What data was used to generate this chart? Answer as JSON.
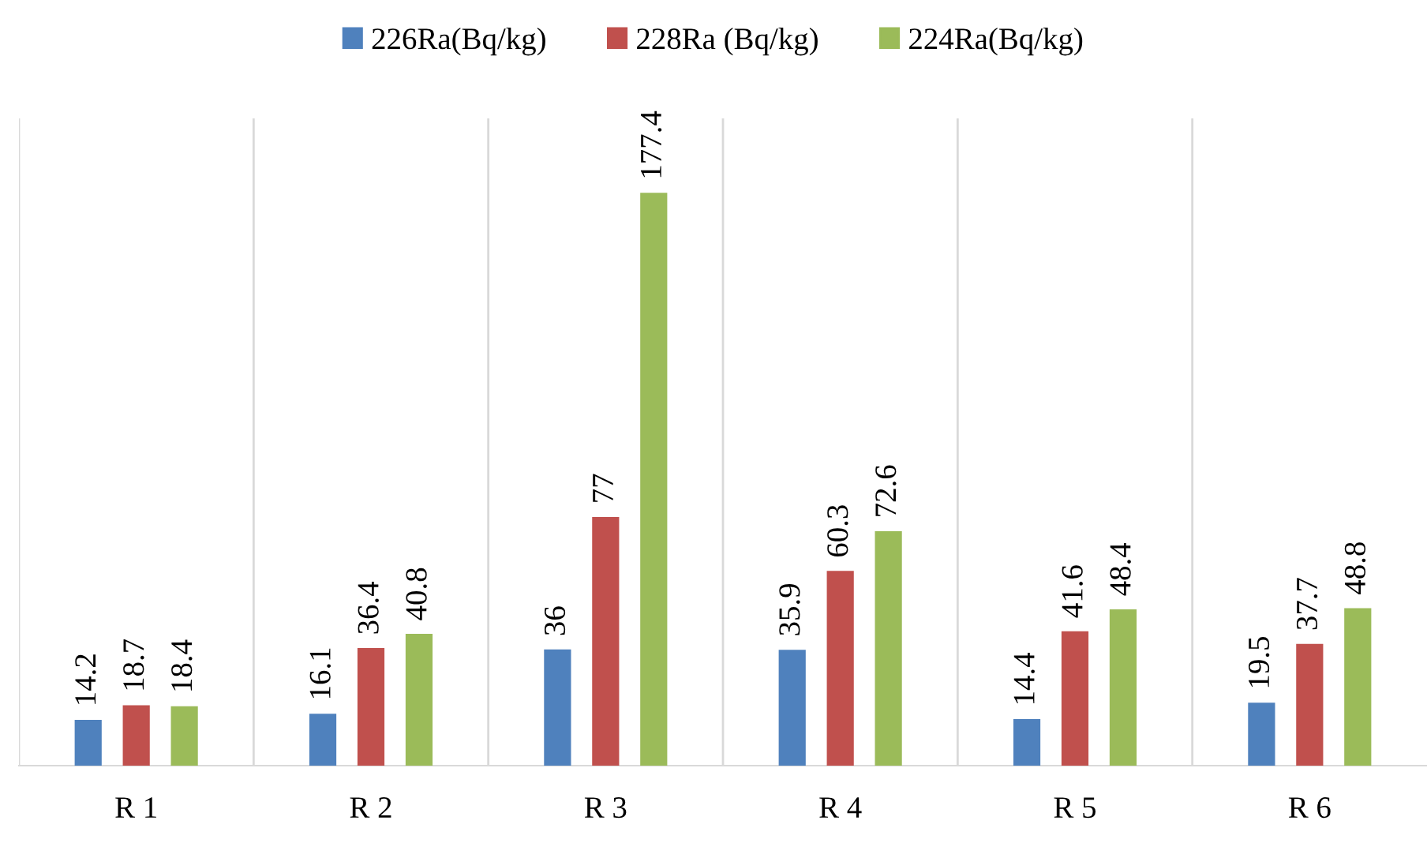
{
  "chart_data": {
    "type": "bar",
    "categories": [
      "R 1",
      "R 2",
      "R 3",
      "R 4",
      "R 5",
      "R 6"
    ],
    "series": [
      {
        "name": "226Ra(Bq/kg)",
        "color": "#4f81bd",
        "values": [
          14.2,
          16.1,
          36,
          35.9,
          14.4,
          19.5
        ]
      },
      {
        "name": "228Ra (Bq/kg)",
        "color": "#c0504d",
        "values": [
          18.7,
          36.4,
          77,
          60.3,
          41.6,
          37.7
        ]
      },
      {
        "name": "224Ra(Bq/kg)",
        "color": "#9bbb59",
        "values": [
          18.4,
          40.8,
          177.4,
          72.6,
          48.4,
          48.8
        ]
      }
    ],
    "data_labels": true,
    "legend": "top",
    "grid": "x",
    "tick_labels": "x"
  }
}
